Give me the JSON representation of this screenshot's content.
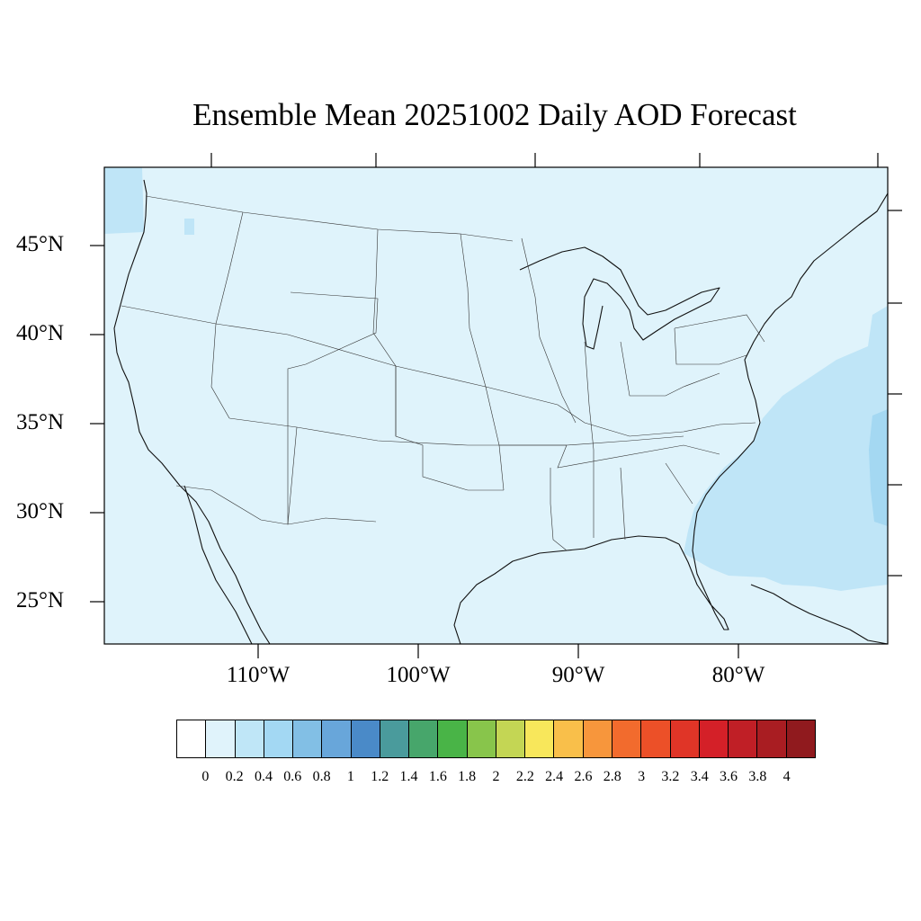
{
  "title": "Ensemble Mean 20251002 Daily AOD Forecast",
  "map": {
    "region": "Contiguous United States",
    "projection": "Lambert Conformal",
    "lat_labels": [
      "45°N",
      "40°N",
      "35°N",
      "30°N",
      "25°N"
    ],
    "lon_labels": [
      "110°W",
      "100°W",
      "90°W",
      "80°W"
    ],
    "field": {
      "background_value_range": [
        0.2,
        0.4
      ],
      "higher_value_regions": [
        {
          "area": "Atlantic Ocean off the Southeast coast",
          "range": [
            0.4,
            0.6
          ]
        },
        {
          "area": "Florida peninsula and Gulf of Mexico near Florida",
          "range": [
            0.4,
            0.6
          ]
        },
        {
          "area": "Pacific Northwest coast",
          "range": [
            0.4,
            0.6
          ]
        },
        {
          "area": "Far eastern Atlantic edge",
          "range": [
            0.6,
            0.8
          ]
        }
      ]
    },
    "colors": {
      "land_fill": "#dff3fb",
      "elevated_fill": "#bfe5f7",
      "peak_fill": "#a4d8f2",
      "coastline": "#111111",
      "state_lines": "#333333"
    }
  },
  "colorbar": {
    "labels": [
      "0",
      "0.2",
      "0.4",
      "0.6",
      "0.8",
      "1",
      "1.2",
      "1.4",
      "1.6",
      "1.8",
      "2",
      "2.2",
      "2.4",
      "2.6",
      "2.8",
      "3",
      "3.2",
      "3.4",
      "3.6",
      "3.8",
      "4"
    ],
    "colors": [
      "#ffffff",
      "#e0f3fb",
      "#bfe6f7",
      "#a3d8f3",
      "#82bfe5",
      "#68a6da",
      "#4a8ac8",
      "#4a9b9c",
      "#47a66b",
      "#49b447",
      "#88c54b",
      "#c4d654",
      "#f8e75b",
      "#f9bf4a",
      "#f7963c",
      "#f26b2d",
      "#ec5028",
      "#e03527",
      "#d42028",
      "#c01f26",
      "#a91d22",
      "#901a1e"
    ]
  }
}
